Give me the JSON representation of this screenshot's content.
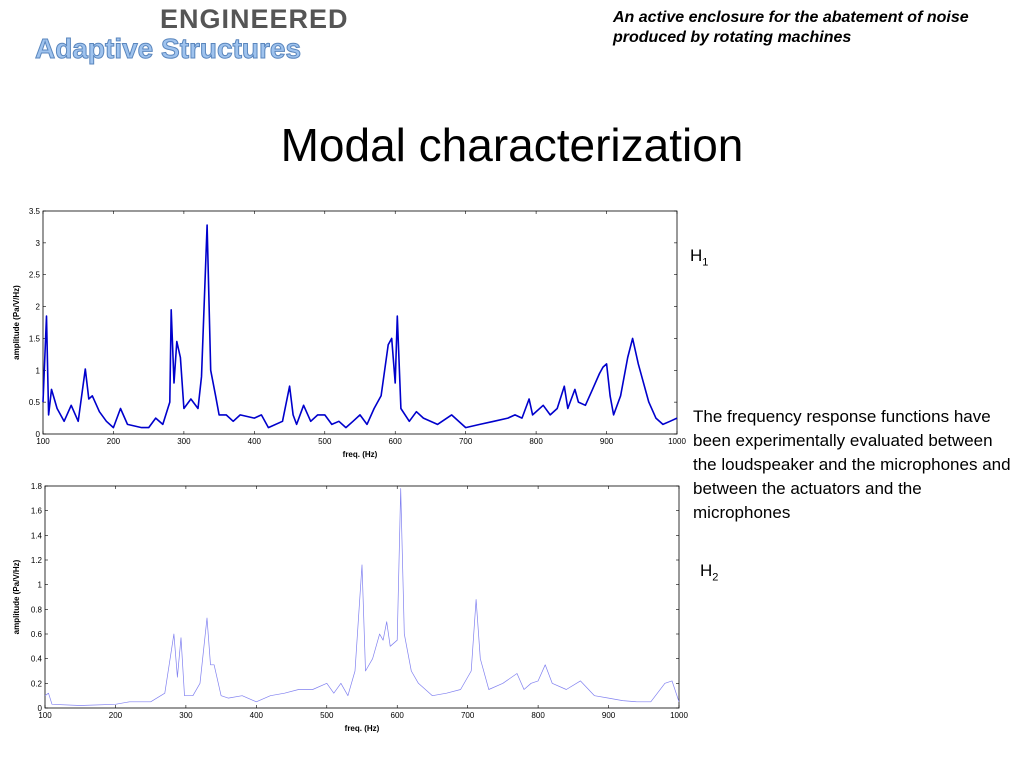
{
  "logo": {
    "line1": "ENGINEERED",
    "line2": "Adaptive Structures"
  },
  "header": "An active enclosure for the abatement of noise produced by rotating machines",
  "title": "Modal characterization",
  "description": "The frequency response functions have been experimentally evaluated between the loudspeaker and the microphones and between the actuators and the microphones",
  "chart_labels": [
    {
      "text": "H",
      "sub": "1"
    },
    {
      "text": "H",
      "sub": "2"
    }
  ],
  "chart_data": [
    {
      "type": "line",
      "xlabel": "freq. (Hz)",
      "ylabel": "amplitude (Pa/V/Hz)",
      "xlim": [
        100,
        1000
      ],
      "xticks": [
        100,
        200,
        300,
        400,
        500,
        600,
        700,
        800,
        900,
        1000
      ],
      "ylim": [
        0,
        3.5
      ],
      "yticks": [
        0,
        0.5,
        1,
        1.5,
        2,
        2.5,
        3,
        3.5
      ],
      "series": [
        {
          "name": "H1",
          "color": "#0000cc",
          "x": [
            100,
            105,
            108,
            112,
            120,
            130,
            140,
            150,
            160,
            165,
            170,
            180,
            190,
            200,
            210,
            220,
            240,
            250,
            260,
            270,
            280,
            282,
            286,
            290,
            295,
            300,
            310,
            320,
            325,
            333,
            338,
            345,
            350,
            360,
            370,
            380,
            400,
            410,
            420,
            440,
            450,
            455,
            460,
            470,
            480,
            490,
            500,
            510,
            520,
            530,
            540,
            550,
            560,
            570,
            580,
            590,
            595,
            600,
            603,
            608,
            620,
            630,
            640,
            660,
            680,
            700,
            720,
            740,
            760,
            770,
            780,
            790,
            795,
            810,
            820,
            830,
            840,
            845,
            855,
            860,
            870,
            880,
            890,
            895,
            900,
            905,
            910,
            920,
            930,
            937,
            945,
            950,
            960,
            970,
            980,
            990,
            1000
          ],
          "values": [
            0.5,
            1.85,
            0.3,
            0.7,
            0.4,
            0.2,
            0.45,
            0.2,
            1.02,
            0.55,
            0.6,
            0.35,
            0.2,
            0.1,
            0.4,
            0.15,
            0.1,
            0.1,
            0.25,
            0.15,
            0.5,
            1.95,
            0.8,
            1.45,
            1.2,
            0.4,
            0.55,
            0.4,
            0.9,
            3.28,
            1.0,
            0.6,
            0.3,
            0.3,
            0.2,
            0.3,
            0.25,
            0.3,
            0.1,
            0.2,
            0.75,
            0.3,
            0.15,
            0.45,
            0.2,
            0.3,
            0.3,
            0.15,
            0.2,
            0.1,
            0.2,
            0.3,
            0.15,
            0.4,
            0.6,
            1.4,
            1.5,
            0.8,
            1.85,
            0.4,
            0.2,
            0.35,
            0.25,
            0.15,
            0.3,
            0.1,
            0.15,
            0.2,
            0.25,
            0.3,
            0.25,
            0.55,
            0.3,
            0.45,
            0.3,
            0.4,
            0.75,
            0.4,
            0.7,
            0.5,
            0.45,
            0.7,
            0.95,
            1.05,
            1.1,
            0.6,
            0.3,
            0.6,
            1.2,
            1.5,
            1.1,
            0.9,
            0.5,
            0.25,
            0.15,
            0.2,
            0.25
          ]
        }
      ]
    },
    {
      "type": "line",
      "xlabel": "freq. (Hz)",
      "ylabel": "amplitude (Pa/V/Hz)",
      "xlim": [
        100,
        1000
      ],
      "xticks": [
        100,
        200,
        300,
        400,
        500,
        600,
        700,
        800,
        900,
        1000
      ],
      "ylim": [
        0,
        1.8
      ],
      "yticks": [
        0,
        0.2,
        0.4,
        0.6,
        0.8,
        1,
        1.2,
        1.4,
        1.6,
        1.8
      ],
      "series": [
        {
          "name": "H2",
          "color": "#8080f0",
          "x": [
            100,
            105,
            110,
            150,
            200,
            220,
            250,
            270,
            283,
            288,
            293,
            298,
            310,
            320,
            330,
            335,
            340,
            350,
            360,
            380,
            400,
            420,
            440,
            460,
            480,
            500,
            510,
            520,
            530,
            540,
            550,
            555,
            565,
            575,
            580,
            585,
            590,
            600,
            605,
            610,
            620,
            630,
            650,
            670,
            690,
            705,
            712,
            718,
            730,
            750,
            770,
            780,
            790,
            800,
            810,
            820,
            840,
            860,
            880,
            900,
            920,
            940,
            960,
            980,
            990,
            1000
          ],
          "values": [
            0.1,
            0.12,
            0.03,
            0.02,
            0.03,
            0.05,
            0.05,
            0.12,
            0.6,
            0.25,
            0.57,
            0.1,
            0.1,
            0.2,
            0.73,
            0.35,
            0.35,
            0.1,
            0.08,
            0.1,
            0.05,
            0.1,
            0.12,
            0.15,
            0.15,
            0.2,
            0.12,
            0.2,
            0.1,
            0.3,
            1.16,
            0.3,
            0.4,
            0.6,
            0.55,
            0.7,
            0.5,
            0.55,
            1.78,
            0.6,
            0.3,
            0.2,
            0.1,
            0.12,
            0.15,
            0.3,
            0.88,
            0.4,
            0.15,
            0.2,
            0.28,
            0.15,
            0.2,
            0.22,
            0.35,
            0.2,
            0.15,
            0.22,
            0.1,
            0.08,
            0.06,
            0.05,
            0.05,
            0.2,
            0.22,
            0.05
          ]
        }
      ]
    }
  ]
}
